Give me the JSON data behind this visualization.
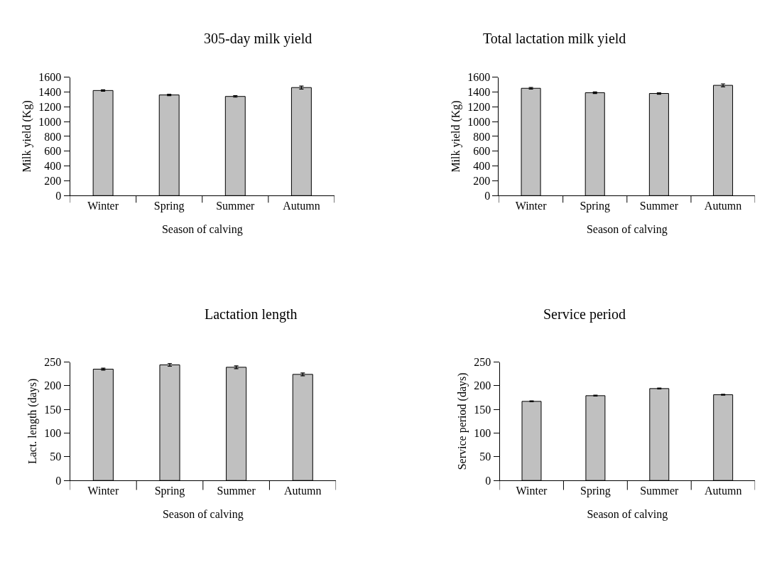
{
  "chart_data": [
    {
      "type": "bar",
      "title": "305-day milk yield",
      "xlabel": "Season of calving",
      "ylabel": "Milk yield (Kg)",
      "categories": [
        "Winter",
        "Spring",
        "Summer",
        "Autumn"
      ],
      "values": [
        1420,
        1360,
        1340,
        1460
      ],
      "errors": [
        10,
        10,
        10,
        20
      ],
      "color": "#c0c0c0",
      "ylim": [
        0,
        1600
      ],
      "yticks": [
        0,
        200,
        400,
        600,
        800,
        1000,
        1200,
        1400,
        1600
      ]
    },
    {
      "type": "bar",
      "title": "Total lactation milk yield",
      "xlabel": "Season of calving",
      "ylabel": "Milk yield (Kg)",
      "categories": [
        "Winter",
        "Spring",
        "Summer",
        "Autumn"
      ],
      "values": [
        1450,
        1390,
        1380,
        1490
      ],
      "errors": [
        10,
        10,
        10,
        20
      ],
      "color": "#c0c0c0",
      "ylim": [
        0,
        1600
      ],
      "yticks": [
        0,
        200,
        400,
        600,
        800,
        1000,
        1200,
        1400,
        1600
      ]
    },
    {
      "type": "bar",
      "title": "Lactation length",
      "xlabel": "Season of calving",
      "ylabel": "Lact. length (days)",
      "categories": [
        "Winter",
        "Spring",
        "Summer",
        "Autumn"
      ],
      "values": [
        235,
        244,
        239,
        224
      ],
      "errors": [
        2,
        3,
        3,
        3
      ],
      "color": "#c0c0c0",
      "ylim": [
        0,
        250
      ],
      "yticks": [
        0,
        50,
        100,
        150,
        200,
        250
      ]
    },
    {
      "type": "bar",
      "title": "Service period",
      "xlabel": "Season of calving",
      "ylabel": "Service period (days)",
      "categories": [
        "Winter",
        "Spring",
        "Summer",
        "Autumn"
      ],
      "values": [
        167,
        179,
        194,
        181
      ],
      "errors": [
        1,
        1,
        1,
        1
      ],
      "color": "#c0c0c0",
      "ylim": [
        0,
        250
      ],
      "yticks": [
        0,
        50,
        100,
        150,
        200,
        250
      ]
    }
  ]
}
